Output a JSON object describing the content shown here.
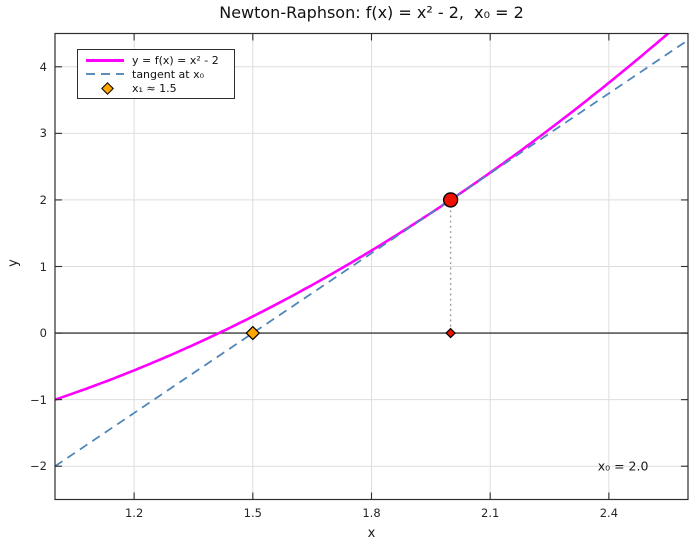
{
  "chart_data": {
    "type": "line",
    "title": "Newton-Raphson: f(x) = x² - 2,  x₀ = 2",
    "xlabel": "x",
    "ylabel": "y",
    "xlim": [
      1.0,
      2.6
    ],
    "ylim": [
      -2.5,
      4.5
    ],
    "xticks": [
      1.2,
      1.5,
      1.8,
      2.1,
      2.4
    ],
    "xtick_labels": [
      "1.2",
      "1.5",
      "1.8",
      "2.1",
      "2.4"
    ],
    "yticks": [
      -2,
      -1,
      0,
      1,
      2,
      3,
      4
    ],
    "ytick_labels": [
      "−2",
      "−1",
      "0",
      "1",
      "2",
      "3",
      "4"
    ],
    "grid": true,
    "series": [
      {
        "name": "y = f(x) = x² - 2",
        "kind": "polynomial",
        "poly": [
          -2,
          0,
          1
        ],
        "color": "#ff00ff",
        "style": "solid",
        "width": 2.6
      },
      {
        "name": "tangent at x₀",
        "kind": "linear",
        "slope": 4,
        "intercept": -6,
        "color": "#4f86b8",
        "style": "dashed",
        "width": 1.8
      }
    ],
    "markers": [
      {
        "name": "point-on-curve-x0",
        "x": 2.0,
        "y": 2.0,
        "shape": "circle",
        "color": "#ee1100",
        "size": 14
      },
      {
        "name": "point-axis-x0",
        "x": 2.0,
        "y": 0.0,
        "shape": "diamond",
        "color": "#ee1100",
        "size": 9
      },
      {
        "name": "point-x1",
        "x": 1.5,
        "y": 0.0,
        "shape": "diamond",
        "color": "#ffa500",
        "size": 13
      }
    ],
    "connector": {
      "from": [
        2.0,
        2.0
      ],
      "to": [
        2.0,
        0.0
      ],
      "style": "dotted",
      "color": "#999999"
    },
    "zero_line": {
      "y": 0,
      "color": "#3c3c3c"
    },
    "annotation": {
      "text": "x₀ = 2.0",
      "x": 2.5,
      "y": -2.0,
      "align": "right"
    },
    "legend": {
      "position": "top-left",
      "entries": [
        {
          "label": "y = f(x) = x² - 2",
          "swatch": "solid-line",
          "color": "#ff00ff"
        },
        {
          "label": "tangent at x₀",
          "swatch": "dashed-line",
          "color": "#5b8cba"
        },
        {
          "label": "x₁ ≈ 1.5",
          "swatch": "diamond",
          "color": "#ffa500"
        }
      ]
    },
    "colors": {
      "grid": "#dedede",
      "spine": "#2d2d2d",
      "tick": "#2d2d2d"
    }
  }
}
